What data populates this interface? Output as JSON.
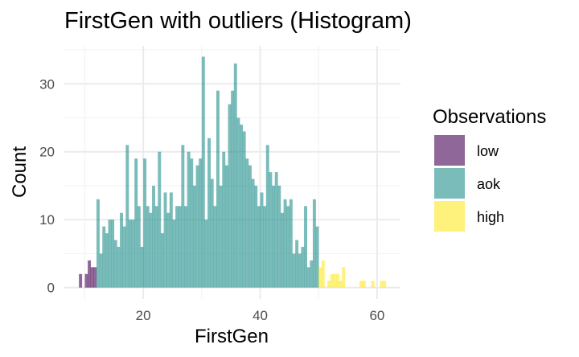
{
  "chart_data": {
    "type": "bar",
    "title": "FirstGen with outliers (Histogram)",
    "xlabel": "FirstGen",
    "ylabel": "Count",
    "xlim": [
      6.5,
      64.0
    ],
    "ylim": [
      -1.7,
      35.6
    ],
    "x_ticks": [
      20,
      40,
      60
    ],
    "y_ticks": [
      0,
      10,
      20,
      30
    ],
    "grid": true,
    "legend": {
      "title": "Observations",
      "placement": "right",
      "entries": [
        {
          "key": "low",
          "label": "low",
          "color": "#440154"
        },
        {
          "key": "aok",
          "label": "aok",
          "color": "#21908C"
        },
        {
          "key": "high",
          "label": "high",
          "color": "#FDE725"
        }
      ]
    },
    "bin_width": 0.5,
    "series": [
      {
        "name": "low",
        "x": [
          9.25,
          10.25,
          10.75,
          11.25,
          11.75
        ],
        "values": [
          2,
          2,
          4,
          3,
          3
        ]
      },
      {
        "name": "aok",
        "x": [
          12.25,
          12.75,
          13.25,
          13.75,
          14.25,
          14.75,
          15.25,
          15.75,
          16.25,
          16.75,
          17.25,
          17.75,
          18.25,
          18.75,
          19.25,
          19.75,
          20.25,
          20.75,
          21.25,
          21.75,
          22.25,
          22.75,
          23.25,
          23.75,
          24.25,
          24.75,
          25.25,
          25.75,
          26.25,
          26.75,
          27.25,
          27.75,
          28.25,
          28.75,
          29.25,
          29.75,
          30.25,
          30.75,
          31.25,
          31.75,
          32.25,
          32.75,
          33.25,
          33.75,
          34.25,
          34.75,
          35.25,
          35.75,
          36.25,
          36.75,
          37.25,
          37.75,
          38.25,
          38.75,
          39.25,
          39.75,
          40.25,
          40.75,
          41.25,
          41.75,
          42.25,
          42.75,
          43.25,
          43.75,
          44.25,
          44.75,
          45.25,
          45.75,
          46.25,
          46.75,
          47.25,
          47.75,
          48.25,
          48.75,
          49.25,
          49.75
        ],
        "values": [
          13,
          5,
          9,
          8,
          10,
          10,
          7,
          6,
          11,
          9,
          21,
          10,
          10,
          19,
          12,
          6,
          19,
          12,
          11,
          15,
          12,
          20,
          8,
          14,
          11,
          14,
          10,
          12,
          12,
          21,
          12,
          20,
          19,
          15,
          18,
          19,
          34,
          10,
          22,
          16,
          12,
          29,
          15,
          20,
          18,
          27,
          29,
          33,
          25,
          24,
          23,
          19,
          18,
          16,
          15,
          12,
          14,
          12,
          21,
          17,
          15,
          17,
          15,
          11,
          13,
          12,
          13,
          5,
          7,
          5,
          6,
          12,
          3,
          4,
          13,
          9
        ]
      },
      {
        "name": "high",
        "x": [
          50.25,
          50.75,
          51.75,
          52.25,
          52.75,
          53.25,
          53.75,
          54.25,
          57.25,
          57.75,
          59.25,
          60.75,
          61.25
        ],
        "values": [
          3,
          4,
          1,
          2,
          2,
          2,
          1,
          3,
          1,
          1,
          1,
          1,
          1
        ]
      }
    ]
  }
}
